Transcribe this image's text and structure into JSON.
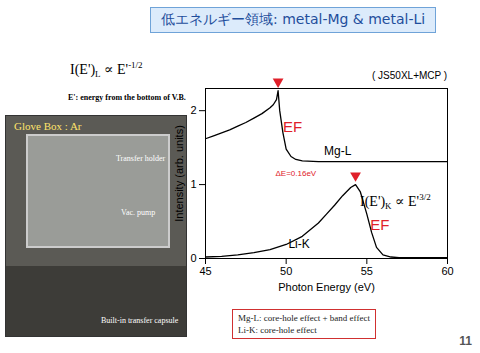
{
  "title": "低エネルギー領域: metal-Mg & metal-Li",
  "formula_top": {
    "base": "I(E')",
    "sub": "L",
    "mid": " ∝ E'",
    "sup": "-1/2"
  },
  "formula_right": {
    "base": "I(E')",
    "sub": "K",
    "mid": " ∝ E'",
    "sup": "3/2"
  },
  "note": "E': energy from the bottom of V.B.",
  "instrument": "( JS50XL+MCP )",
  "photo_labels": [
    "Glove Box : Ar",
    "Transfer holder",
    "Vac. pump",
    "Built-in transfer capsule"
  ],
  "box_lines": [
    "Mg-L:  core-hole effect + band effect",
    "Li-K:   core-hole effect"
  ],
  "page_number": "11",
  "chart_data": {
    "type": "line",
    "x_label": "Photon Energy (eV)",
    "y_label": "Intensity (arb. units)",
    "xlim": [
      45,
      60
    ],
    "xticks": [
      45,
      50,
      55,
      60
    ],
    "ylim": [
      0,
      2.3
    ],
    "yticks": [
      0,
      1,
      2
    ],
    "grid": false,
    "series": [
      {
        "name": "Mg-L",
        "color": "#000000",
        "x": [
          45,
          45.5,
          46,
          46.5,
          47,
          47.5,
          48,
          48.5,
          49,
          49.2,
          49.4,
          49.5,
          49.6,
          49.8,
          50,
          50.3,
          50.6,
          51,
          52,
          53,
          54,
          55,
          56,
          57,
          58,
          59,
          60
        ],
        "values": [
          1.62,
          1.66,
          1.7,
          1.74,
          1.79,
          1.84,
          1.9,
          1.96,
          2.04,
          2.08,
          2.15,
          2.27,
          2.0,
          1.7,
          1.48,
          1.38,
          1.34,
          1.32,
          1.31,
          1.31,
          1.31,
          1.31,
          1.31,
          1.31,
          1.31,
          1.31,
          1.31
        ]
      },
      {
        "name": "Li-K",
        "color": "#000000",
        "x": [
          45,
          46,
          47,
          48,
          49,
          50,
          51,
          52,
          52.5,
          53,
          53.5,
          54,
          54.3,
          54.6,
          55,
          55.3,
          55.6,
          56,
          56.5,
          57,
          58,
          59,
          60
        ],
        "values": [
          0.02,
          0.03,
          0.05,
          0.08,
          0.12,
          0.19,
          0.3,
          0.48,
          0.6,
          0.72,
          0.85,
          0.96,
          1.0,
          0.9,
          0.6,
          0.35,
          0.15,
          0.05,
          0.02,
          0.01,
          0.01,
          0.01,
          0.01
        ]
      }
    ],
    "annotations": [
      {
        "text": "EF",
        "x": 50.4,
        "y": 1.78,
        "color": "#e0202a"
      },
      {
        "text": "Mg-L",
        "x": 53.2,
        "y": 1.45,
        "color": "#000000"
      },
      {
        "text": "ΔE=0.16eV",
        "x": 50.6,
        "y": 1.15,
        "color": "#e0202a"
      },
      {
        "text": "EF",
        "x": 55.8,
        "y": 0.45,
        "color": "#e0202a"
      },
      {
        "text": "Li-K",
        "x": 50.8,
        "y": 0.2,
        "color": "#000000"
      }
    ],
    "markers": [
      {
        "x": 49.5,
        "y": 2.27,
        "color": "#e0202a"
      },
      {
        "x": 54.3,
        "y": 1.0,
        "color": "#e0202a"
      }
    ]
  }
}
